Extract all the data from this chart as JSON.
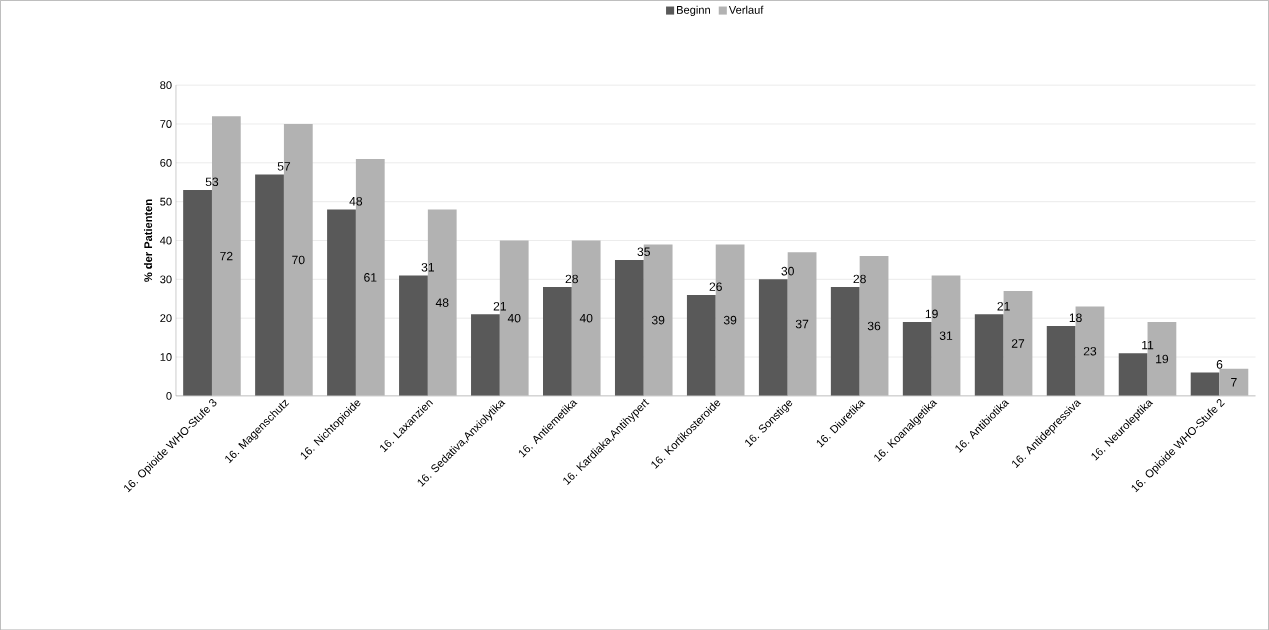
{
  "chart_data": {
    "type": "bar",
    "ylabel": "% der Patienten",
    "categories": [
      "16. Opioide WHO-Stufe 3",
      "16. Magenschutz",
      "16. Nichtopioide",
      "16. Laxanzien",
      "16. Sedativa,Anxiolytika",
      "16. Antiemetika",
      "16. Kardiaka,Antihypert",
      "16. Kortikosteroide",
      "16. Sonstige",
      "16. Diuretika",
      "16. Koanalgetika",
      "16. Antibiotika",
      "16. Antidepressiva",
      "16. Neuroleptika",
      "16. Opioide WHO-Stufe 2"
    ],
    "series": [
      {
        "name": "Beginn",
        "color": "#595959",
        "values": [
          53,
          57,
          48,
          31,
          21,
          28,
          35,
          26,
          30,
          28,
          19,
          21,
          18,
          11,
          6
        ]
      },
      {
        "name": "Verlauf",
        "color": "#b2b2b2",
        "values": [
          72,
          70,
          61,
          48,
          40,
          40,
          39,
          39,
          37,
          36,
          31,
          27,
          23,
          19,
          7
        ]
      }
    ],
    "ylim": [
      0,
      80
    ],
    "yticks": [
      0,
      10,
      20,
      30,
      40,
      50,
      60,
      70,
      80
    ],
    "grid": "y",
    "legend": "top",
    "data_labels": true
  }
}
